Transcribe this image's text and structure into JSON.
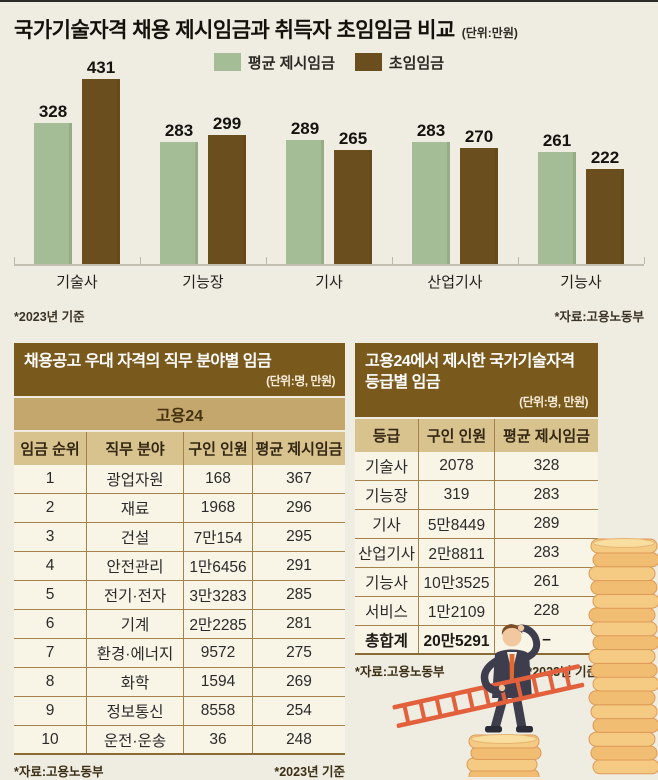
{
  "colors": {
    "background": "#efece2",
    "bar_green": "#a4bd96",
    "bar_brown": "#6b4e1d",
    "table_header_brown": "#7a591c",
    "table_tan": "#c3a76c",
    "table_tan_light": "#d8c28e",
    "table_body_cream": "#f8f4e6",
    "coin_gold": "#f5ca82",
    "ladder_orange": "#e2603c",
    "suit_navy": "#3d3d4d"
  },
  "chart_data": [
    {
      "type": "bar",
      "title": "국가기술자격 채용 제시임금과 취득자 초임임금 비교",
      "unit_label": "(단위:만원)",
      "categories": [
        "기술사",
        "기능장",
        "기사",
        "산업기사",
        "기능사"
      ],
      "series": [
        {
          "name": "평균 제시임금",
          "color": "#a4bd96",
          "values": [
            328,
            283,
            289,
            283,
            261
          ]
        },
        {
          "name": "초임임금",
          "color": "#6b4e1d",
          "values": [
            431,
            299,
            265,
            270,
            222
          ]
        }
      ],
      "ylim": [
        0,
        450
      ],
      "grid": false,
      "legend_position": "top-center",
      "value_labels": true,
      "footnotes": {
        "left": "*2023년 기준",
        "right": "*자료:고용노동부"
      }
    },
    {
      "type": "table",
      "title": "채용공고 우대 자격의 직무 분야별 임금",
      "unit_label": "(단위:명, 만원)",
      "group_header": "고용24",
      "columns": [
        "임금 순위",
        "직무 분야",
        "구인 인원",
        "평균 제시임금"
      ],
      "rows": [
        [
          "1",
          "광업자원",
          "168",
          "367"
        ],
        [
          "2",
          "재료",
          "1968",
          "296"
        ],
        [
          "3",
          "건설",
          "7만154",
          "295"
        ],
        [
          "4",
          "안전관리",
          "1만6456",
          "291"
        ],
        [
          "5",
          "전기·전자",
          "3만3283",
          "285"
        ],
        [
          "6",
          "기계",
          "2만2285",
          "281"
        ],
        [
          "7",
          "환경·에너지",
          "9572",
          "275"
        ],
        [
          "8",
          "화학",
          "1594",
          "269"
        ],
        [
          "9",
          "정보통신",
          "8558",
          "254"
        ],
        [
          "10",
          "운전·운송",
          "36",
          "248"
        ]
      ],
      "footnotes": {
        "left": "*자료:고용노동부",
        "right": "*2023년 기준"
      }
    },
    {
      "type": "table",
      "title": "고용24에서 제시한 국가기술자격 등급별 임금",
      "unit_label": "(단위:명, 만원)",
      "columns": [
        "등급",
        "구인 인원",
        "평균 제시임금"
      ],
      "rows": [
        [
          "기술사",
          "2078",
          "328"
        ],
        [
          "기능장",
          "319",
          "283"
        ],
        [
          "기사",
          "5만8449",
          "289"
        ],
        [
          "산업기사",
          "2만8811",
          "283"
        ],
        [
          "기능사",
          "10만3525",
          "261"
        ],
        [
          "서비스",
          "1만2109",
          "228"
        ],
        [
          "총합계",
          "20만5291",
          "–"
        ]
      ],
      "total_row_index": 6,
      "footnotes": {
        "left": "*자료:고용노동부",
        "right": "*2023년 기준"
      }
    }
  ],
  "illustration": {
    "name": "businessman-with-ladder-on-coin-stacks",
    "elements": [
      "tall-coin-stack",
      "small-coin-stack",
      "businessman",
      "ladder"
    ]
  }
}
